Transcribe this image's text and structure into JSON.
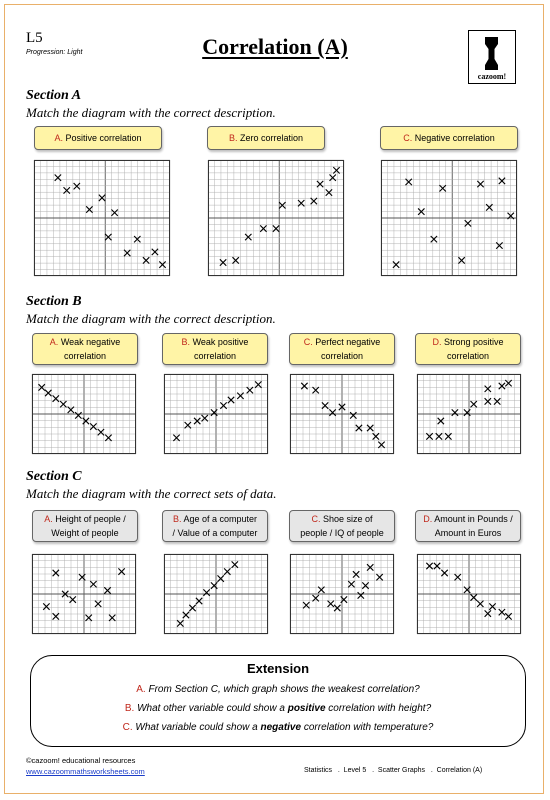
{
  "header": {
    "level": "L5",
    "progression": "Progression: Light",
    "title": "Correlation (A)",
    "logo_text": "cazoom!"
  },
  "sectionA": {
    "heading": "Section A",
    "instruction": "Match the diagram with the correct description.",
    "labels": [
      {
        "letter": "A.",
        "text": "Positive correlation"
      },
      {
        "letter": "B.",
        "text": "Zero correlation"
      },
      {
        "letter": "C.",
        "text": "Negative correlation"
      }
    ]
  },
  "sectionB": {
    "heading": "Section B",
    "instruction": "Match the diagram with the correct description.",
    "labels": [
      {
        "letter": "A.",
        "line1": "Weak negative",
        "line2": "correlation"
      },
      {
        "letter": "B.",
        "line1": "Weak positive",
        "line2": "correlation"
      },
      {
        "letter": "C.",
        "line1": "Perfect negative",
        "line2": "correlation"
      },
      {
        "letter": "D.",
        "line1": "Strong positive",
        "line2": "correlation"
      }
    ]
  },
  "sectionC": {
    "heading": "Section C",
    "instruction": "Match the diagram with the correct sets of data.",
    "labels": [
      {
        "letter": "A.",
        "line1": "Height of people /",
        "line2": "Weight of people"
      },
      {
        "letter": "B.",
        "line1": "Age of a computer",
        "line2": "/ Value of a computer"
      },
      {
        "letter": "C.",
        "line1": "Shoe size of",
        "line2": "people / IQ of people"
      },
      {
        "letter": "D.",
        "line1": "Amount in Pounds /",
        "line2": "Amount in Euros"
      }
    ]
  },
  "graphs": {
    "A": [
      {
        "points": [
          [
            0.15,
            0.88
          ],
          [
            0.3,
            0.8
          ],
          [
            0.22,
            0.76
          ],
          [
            0.5,
            0.69
          ],
          [
            0.4,
            0.58
          ],
          [
            0.6,
            0.55
          ],
          [
            0.55,
            0.32
          ],
          [
            0.78,
            0.3
          ],
          [
            0.7,
            0.17
          ],
          [
            0.92,
            0.18
          ],
          [
            0.85,
            0.1
          ],
          [
            0.98,
            0.06
          ]
        ]
      },
      {
        "points": [
          [
            0.08,
            0.08
          ],
          [
            0.18,
            0.1
          ],
          [
            0.28,
            0.32
          ],
          [
            0.4,
            0.4
          ],
          [
            0.5,
            0.4
          ],
          [
            0.55,
            0.62
          ],
          [
            0.7,
            0.64
          ],
          [
            0.8,
            0.66
          ],
          [
            0.85,
            0.82
          ],
          [
            0.95,
            0.88
          ],
          [
            0.92,
            0.74
          ],
          [
            0.98,
            0.95
          ]
        ]
      },
      {
        "points": [
          [
            0.08,
            0.06
          ],
          [
            0.18,
            0.84
          ],
          [
            0.28,
            0.56
          ],
          [
            0.38,
            0.3
          ],
          [
            0.45,
            0.78
          ],
          [
            0.6,
            0.1
          ],
          [
            0.65,
            0.45
          ],
          [
            0.75,
            0.82
          ],
          [
            0.82,
            0.6
          ],
          [
            0.92,
            0.85
          ],
          [
            0.9,
            0.24
          ],
          [
            0.99,
            0.52
          ]
        ]
      }
    ],
    "B": [
      {
        "points": [
          [
            0.05,
            0.88
          ],
          [
            0.12,
            0.8
          ],
          [
            0.2,
            0.72
          ],
          [
            0.28,
            0.64
          ],
          [
            0.36,
            0.56
          ],
          [
            0.44,
            0.48
          ],
          [
            0.52,
            0.4
          ],
          [
            0.6,
            0.32
          ],
          [
            0.68,
            0.24
          ],
          [
            0.76,
            0.16
          ]
        ]
      },
      {
        "points": [
          [
            0.08,
            0.16
          ],
          [
            0.2,
            0.34
          ],
          [
            0.3,
            0.4
          ],
          [
            0.38,
            0.44
          ],
          [
            0.48,
            0.52
          ],
          [
            0.58,
            0.62
          ],
          [
            0.66,
            0.7
          ],
          [
            0.76,
            0.76
          ],
          [
            0.86,
            0.84
          ],
          [
            0.95,
            0.92
          ]
        ]
      },
      {
        "points": [
          [
            0.1,
            0.9
          ],
          [
            0.22,
            0.84
          ],
          [
            0.32,
            0.62
          ],
          [
            0.4,
            0.52
          ],
          [
            0.5,
            0.6
          ],
          [
            0.62,
            0.48
          ],
          [
            0.68,
            0.3
          ],
          [
            0.8,
            0.3
          ],
          [
            0.86,
            0.18
          ],
          [
            0.92,
            0.06
          ]
        ]
      },
      {
        "points": [
          [
            0.08,
            0.18
          ],
          [
            0.18,
            0.18
          ],
          [
            0.28,
            0.18
          ],
          [
            0.2,
            0.4
          ],
          [
            0.35,
            0.52
          ],
          [
            0.48,
            0.52
          ],
          [
            0.55,
            0.64
          ],
          [
            0.7,
            0.68
          ],
          [
            0.8,
            0.68
          ],
          [
            0.7,
            0.86
          ],
          [
            0.85,
            0.9
          ],
          [
            0.92,
            0.94
          ]
        ]
      }
    ],
    "C": [
      {
        "points": [
          [
            0.2,
            0.8
          ],
          [
            0.1,
            0.32
          ],
          [
            0.3,
            0.5
          ],
          [
            0.38,
            0.42
          ],
          [
            0.48,
            0.74
          ],
          [
            0.6,
            0.64
          ],
          [
            0.75,
            0.55
          ],
          [
            0.65,
            0.36
          ],
          [
            0.9,
            0.82
          ],
          [
            0.2,
            0.18
          ],
          [
            0.55,
            0.16
          ],
          [
            0.8,
            0.16
          ]
        ]
      },
      {
        "points": [
          [
            0.12,
            0.08
          ],
          [
            0.18,
            0.2
          ],
          [
            0.25,
            0.3
          ],
          [
            0.32,
            0.4
          ],
          [
            0.4,
            0.52
          ],
          [
            0.48,
            0.62
          ],
          [
            0.55,
            0.72
          ],
          [
            0.62,
            0.82
          ],
          [
            0.7,
            0.92
          ]
        ]
      },
      {
        "points": [
          [
            0.12,
            0.34
          ],
          [
            0.22,
            0.44
          ],
          [
            0.28,
            0.56
          ],
          [
            0.38,
            0.36
          ],
          [
            0.45,
            0.3
          ],
          [
            0.52,
            0.42
          ],
          [
            0.6,
            0.64
          ],
          [
            0.65,
            0.78
          ],
          [
            0.75,
            0.62
          ],
          [
            0.8,
            0.88
          ],
          [
            0.9,
            0.74
          ],
          [
            0.7,
            0.48
          ]
        ]
      },
      {
        "points": [
          [
            0.08,
            0.9
          ],
          [
            0.16,
            0.9
          ],
          [
            0.24,
            0.8
          ],
          [
            0.38,
            0.74
          ],
          [
            0.48,
            0.56
          ],
          [
            0.55,
            0.45
          ],
          [
            0.62,
            0.36
          ],
          [
            0.75,
            0.32
          ],
          [
            0.7,
            0.22
          ],
          [
            0.85,
            0.24
          ],
          [
            0.92,
            0.18
          ]
        ]
      }
    ]
  },
  "extension": {
    "title": "Extension",
    "questions": [
      {
        "letter": "A.",
        "pre": "From Section C, which graph shows the weakest correlation?",
        "bold": "",
        "post": ""
      },
      {
        "letter": "B.",
        "pre": "What other variable could show a ",
        "bold": "positive",
        "post": " correlation with height?"
      },
      {
        "letter": "C.",
        "pre": "What variable could show a ",
        "bold": "negative",
        "post": " correlation with temperature?"
      }
    ]
  },
  "footer": {
    "copyright": "©cazoom! educational resources",
    "url": "www.cazoommathsworksheets.com",
    "tags": "Statistics   .  Level 5   .  Scatter Graphs   .  Correlation (A)"
  }
}
